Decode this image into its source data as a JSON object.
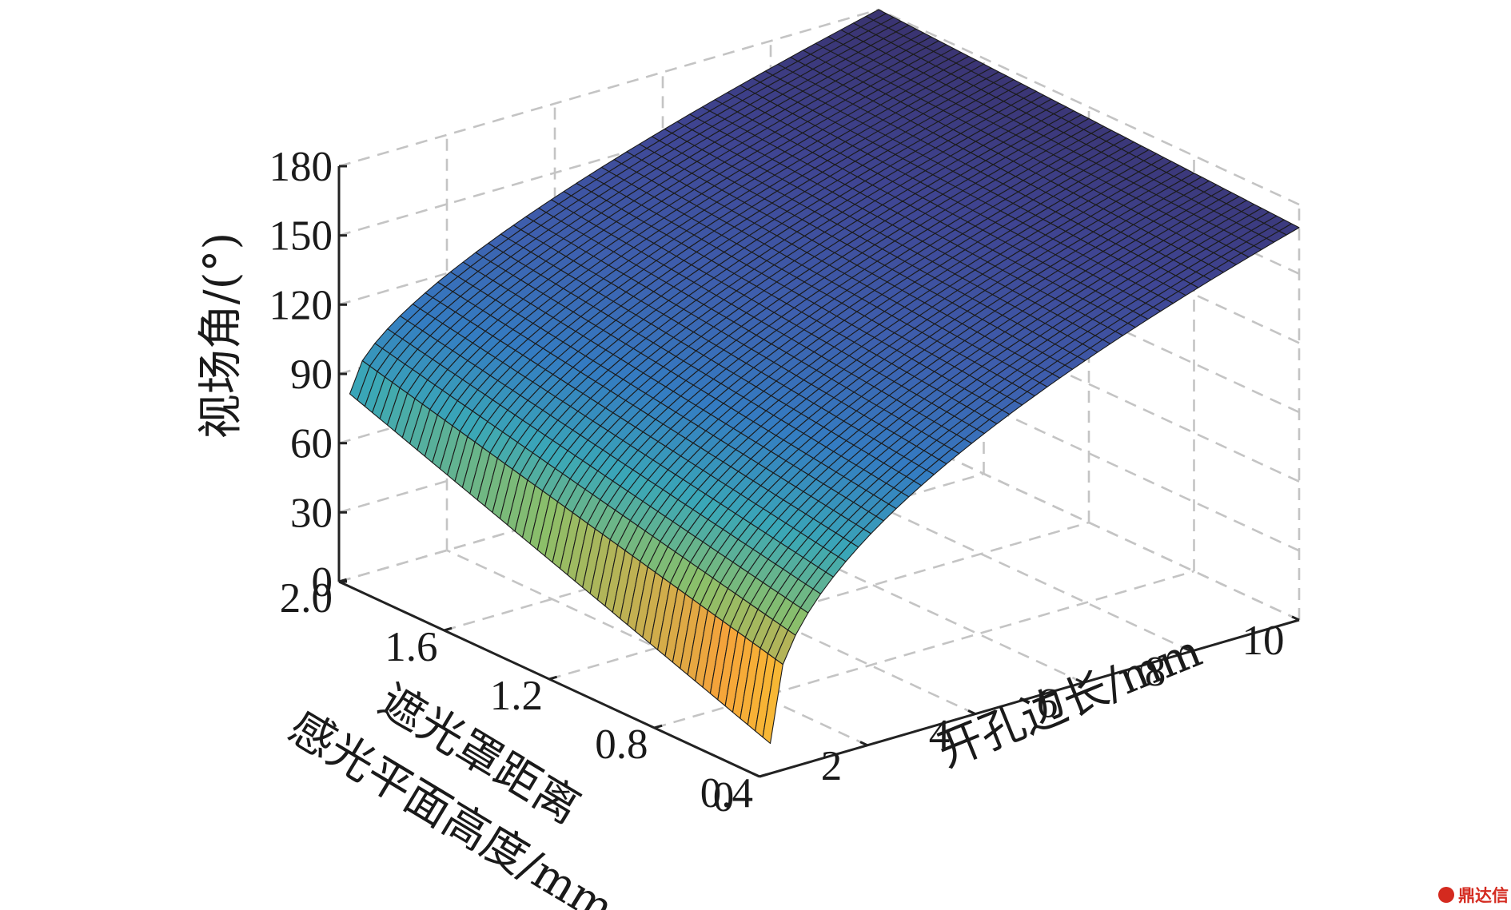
{
  "chart_data": {
    "type": "surface",
    "x": {
      "label": "开孔边长/mm",
      "ticks": [
        "0",
        "2",
        "4",
        "6",
        "8",
        "10"
      ],
      "range": [
        0,
        10
      ]
    },
    "y": {
      "label_line1": "遮光罩距离",
      "label_line2": "感光平面高度/mm",
      "ticks": [
        "0.4",
        "0.8",
        "1.2",
        "1.6",
        "2.0"
      ],
      "range": [
        0.4,
        2.0
      ]
    },
    "z": {
      "label": "视场角/(°)",
      "ticks": [
        "0",
        "30",
        "60",
        "90",
        "120",
        "150",
        "180"
      ],
      "range": [
        0,
        180
      ]
    },
    "grid": true,
    "corner_values_deg": [
      {
        "x": 0.2,
        "y": 2.0,
        "z": 80
      },
      {
        "x": 0.2,
        "y": 0.4,
        "z": 13
      },
      {
        "x": 10,
        "y": 2.0,
        "z": 180
      },
      {
        "x": 10,
        "y": 0.4,
        "z": 170
      }
    ],
    "colormap": [
      "#fde725",
      "#f5a33b",
      "#8bbf6a",
      "#3aa7b7",
      "#347cc2",
      "#3e5fae",
      "#3f4593",
      "#3a3370"
    ]
  },
  "watermark": {
    "text": "鼎达信",
    "color": "#d42a1f"
  }
}
